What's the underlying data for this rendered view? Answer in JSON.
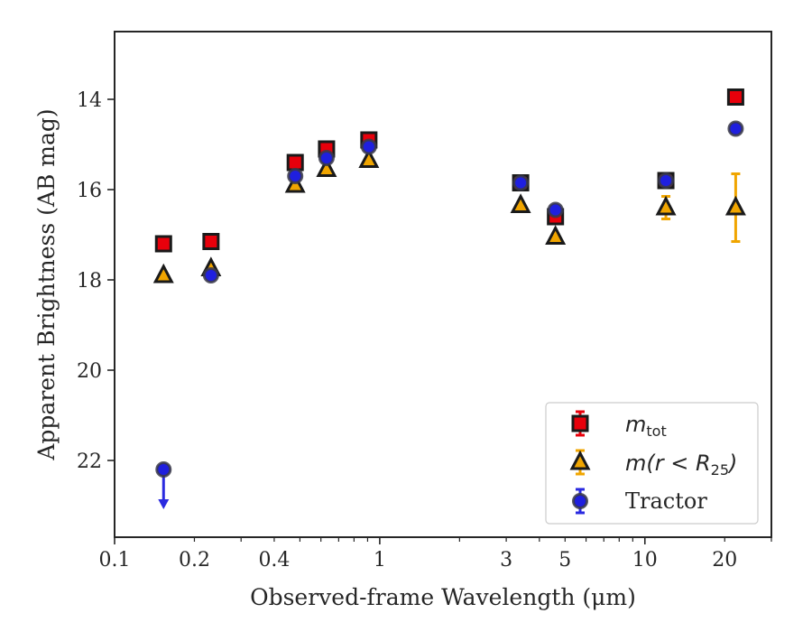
{
  "chart_data": {
    "type": "scatter",
    "xscale": "log",
    "yaxis_inverted": true,
    "xlim": [
      0.1,
      30
    ],
    "ylim": [
      12.5,
      23.7
    ],
    "xlabel": "Observed-frame Wavelength (μm)",
    "ylabel": "Apparent Brightness (AB mag)",
    "xticks": [
      0.1,
      0.2,
      0.4,
      1,
      3,
      5,
      10,
      20
    ],
    "xtick_labels": [
      "0.1",
      "0.2",
      "0.4",
      "1",
      "3",
      "5",
      "10",
      "20"
    ],
    "yticks": [
      14,
      16,
      18,
      20,
      22
    ],
    "ytick_labels": [
      "14",
      "16",
      "18",
      "20",
      "22"
    ],
    "grid": false,
    "legend_position": "bottom-right",
    "legend": {
      "mtot_main": "m",
      "mtot_sub": "tot",
      "mr_prefix": "m(r < R",
      "mr_sub": "25",
      "mr_suffix": ")",
      "tractor": "Tractor"
    },
    "series": [
      {
        "key": "mtot",
        "marker": "square",
        "color": "#e8000b",
        "edge": "#1a1a1a",
        "errcolor": "#e8000b",
        "points": [
          {
            "x": 0.153,
            "y": 17.2
          },
          {
            "x": 0.231,
            "y": 17.15
          },
          {
            "x": 0.48,
            "y": 15.4
          },
          {
            "x": 0.63,
            "y": 15.1
          },
          {
            "x": 0.91,
            "y": 14.9
          },
          {
            "x": 3.4,
            "y": 15.85
          },
          {
            "x": 4.6,
            "y": 16.6
          },
          {
            "x": 12.0,
            "y": 15.8
          },
          {
            "x": 22.0,
            "y": 13.95
          }
        ]
      },
      {
        "key": "mr25",
        "marker": "triangle",
        "color": "#f0a500",
        "edge": "#1a1a1a",
        "errcolor": "#f0a500",
        "points": [
          {
            "x": 0.153,
            "y": 17.9
          },
          {
            "x": 0.231,
            "y": 17.75
          },
          {
            "x": 0.48,
            "y": 15.9
          },
          {
            "x": 0.63,
            "y": 15.55
          },
          {
            "x": 0.91,
            "y": 15.35
          },
          {
            "x": 3.4,
            "y": 16.35
          },
          {
            "x": 4.6,
            "y": 17.05
          },
          {
            "x": 12.0,
            "y": 16.4,
            "err": 0.25
          },
          {
            "x": 22.0,
            "y": 16.4,
            "err": 0.75
          }
        ]
      },
      {
        "key": "tractor",
        "marker": "circle",
        "color": "#1f1fdf",
        "edge": "#3a3a48",
        "errcolor": "#2a2ae0",
        "points": [
          {
            "x": 0.153,
            "y": 22.2,
            "upper_limit": true
          },
          {
            "x": 0.231,
            "y": 17.9
          },
          {
            "x": 0.48,
            "y": 15.7
          },
          {
            "x": 0.63,
            "y": 15.3
          },
          {
            "x": 0.91,
            "y": 15.05
          },
          {
            "x": 3.4,
            "y": 15.85
          },
          {
            "x": 4.6,
            "y": 16.45
          },
          {
            "x": 12.0,
            "y": 15.8
          },
          {
            "x": 22.0,
            "y": 14.65
          }
        ]
      }
    ]
  }
}
